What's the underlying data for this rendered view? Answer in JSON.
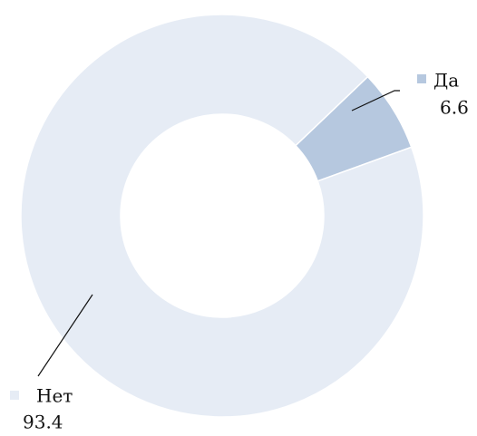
{
  "chart_data": {
    "type": "donut",
    "categories": [
      "Да",
      "Нет"
    ],
    "values": [
      6.6,
      93.4
    ],
    "colors": [
      "#b6c8df",
      "#e6ecf5"
    ]
  }
}
